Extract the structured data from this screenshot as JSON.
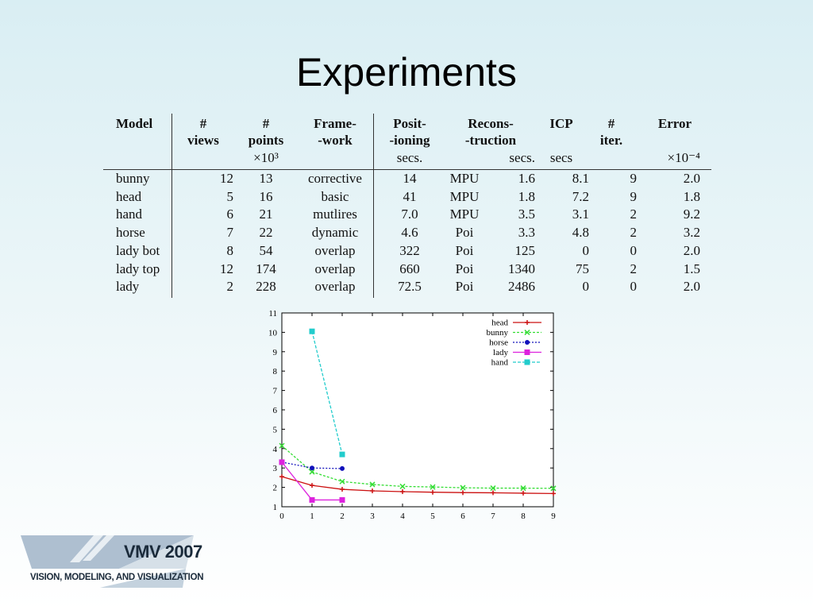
{
  "slide": {
    "title": "Experiments"
  },
  "table": {
    "headers": {
      "model": "Model",
      "views_1": "#",
      "views_2": "views",
      "points_1": "#",
      "points_2": "points",
      "points_unit": "×10³",
      "frame_1": "Frame-",
      "frame_2": "-work",
      "posit_1": "Posit-",
      "posit_2": "-ioning",
      "posit_unit": "secs.",
      "recons_1": "Recons-",
      "recons_2": "-truction",
      "recons_unit": "secs.",
      "icp_1": "ICP",
      "icp_unit": "secs",
      "iter_1": "#",
      "iter_2": "iter.",
      "error_1": "Error",
      "error_unit": "×10⁻⁴"
    },
    "rows": [
      [
        "bunny",
        "12",
        "13",
        "corrective",
        "14",
        "MPU",
        "1.6",
        "8.1",
        "9",
        "2.0"
      ],
      [
        "head",
        "5",
        "16",
        "basic",
        "41",
        "MPU",
        "1.8",
        "7.2",
        "9",
        "1.8"
      ],
      [
        "hand",
        "6",
        "21",
        "mutlires",
        "7.0",
        "MPU",
        "3.5",
        "3.1",
        "2",
        "9.2"
      ],
      [
        "horse",
        "7",
        "22",
        "dynamic",
        "4.6",
        "Poi",
        "3.3",
        "4.8",
        "2",
        "3.2"
      ],
      [
        "lady bot",
        "8",
        "54",
        "overlap",
        "322",
        "Poi",
        "125",
        "0",
        "0",
        "2.0"
      ],
      [
        "lady top",
        "12",
        "174",
        "overlap",
        "660",
        "Poi",
        "1340",
        "75",
        "2",
        "1.5"
      ],
      [
        "lady",
        "2",
        "228",
        "overlap",
        "72.5",
        "Poi",
        "2486",
        "0",
        "0",
        "2.0"
      ]
    ]
  },
  "chart_data": {
    "type": "line",
    "xlim": [
      0,
      9
    ],
    "ylim": [
      1,
      11
    ],
    "xticks": [
      "0",
      "1",
      "2",
      "3",
      "4",
      "5",
      "6",
      "7",
      "8",
      "9"
    ],
    "yticks": [
      "1",
      "2",
      "3",
      "4",
      "5",
      "6",
      "7",
      "8",
      "9",
      "10",
      "11"
    ],
    "legend_position": "top-right",
    "grid": false,
    "series": [
      {
        "name": "head",
        "color": "#cc1111",
        "marker": "plus",
        "dash": "",
        "x": [
          0,
          1,
          2,
          3,
          4,
          5,
          6,
          7,
          8,
          9
        ],
        "y": [
          2.55,
          2.1,
          1.9,
          1.82,
          1.78,
          1.75,
          1.73,
          1.72,
          1.7,
          1.68
        ]
      },
      {
        "name": "bunny",
        "color": "#33dd33",
        "marker": "x",
        "dash": "3,2",
        "x": [
          0,
          1,
          2,
          3,
          4,
          5,
          6,
          7,
          8,
          9
        ],
        "y": [
          4.15,
          2.8,
          2.3,
          2.15,
          2.05,
          2.02,
          1.98,
          1.96,
          1.96,
          1.95
        ]
      },
      {
        "name": "horse",
        "color": "#1111bb",
        "marker": "circle",
        "dash": "2,2",
        "x": [
          0,
          1,
          2
        ],
        "y": [
          3.3,
          3.0,
          2.97
        ]
      },
      {
        "name": "lady",
        "color": "#dd22dd",
        "marker": "square",
        "dash": "",
        "x": [
          0,
          1,
          2
        ],
        "y": [
          3.3,
          1.35,
          1.35
        ]
      },
      {
        "name": "hand",
        "color": "#22cccc",
        "marker": "square",
        "dash": "4,2",
        "x": [
          1,
          2
        ],
        "y": [
          10.05,
          3.7
        ]
      }
    ]
  },
  "logo": {
    "main": "VMV 2007",
    "sub": "VISION, MODELING, AND VISUALIZATION",
    "colors": {
      "banner": "#9fb4c8",
      "banner_light": "#cfdae4",
      "text": "#1a2a3a"
    }
  }
}
